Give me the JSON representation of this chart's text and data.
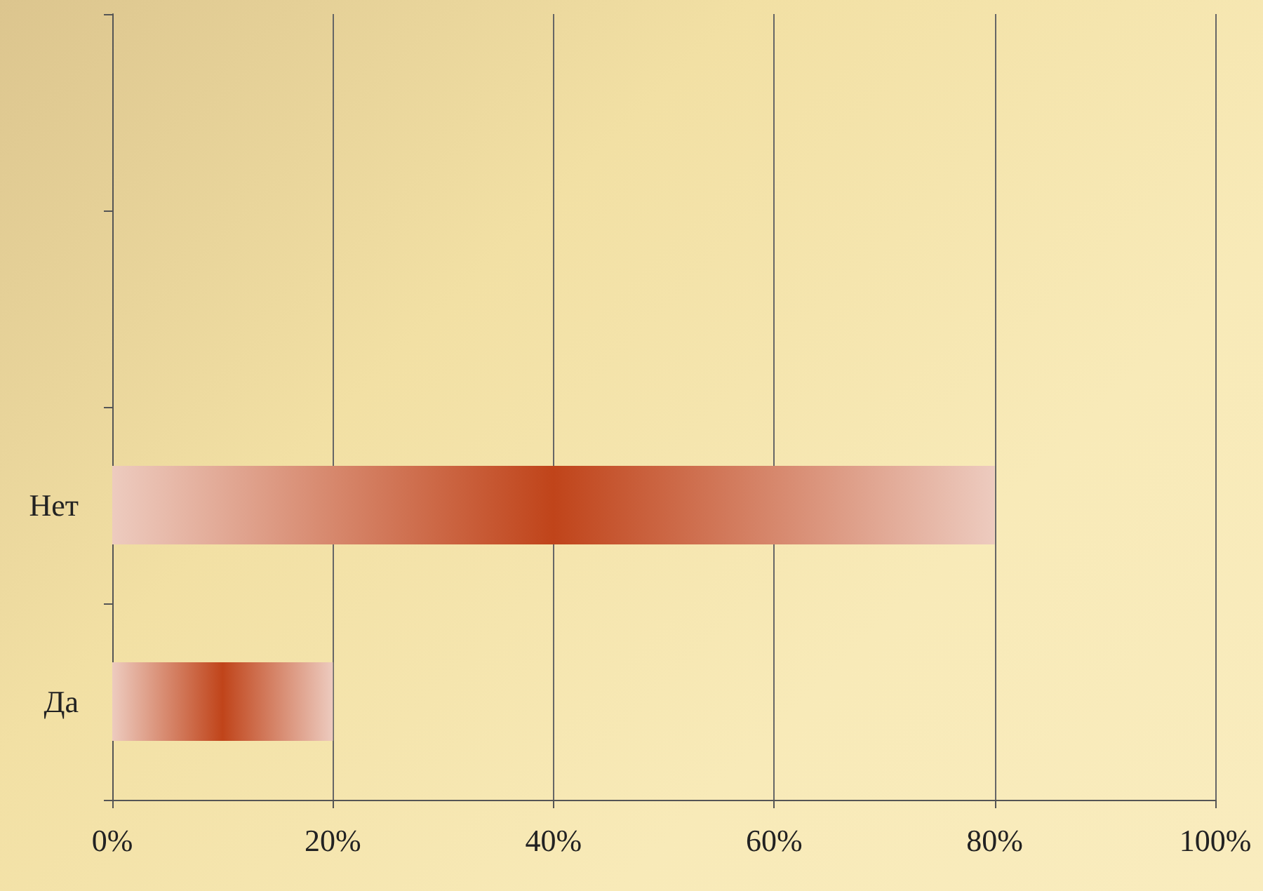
{
  "chart_data": {
    "type": "bar",
    "orientation": "horizontal",
    "categories": [
      null,
      null,
      "Нет",
      "Да"
    ],
    "values": [
      null,
      null,
      80,
      20
    ],
    "color": "#c0441a",
    "xlim": [
      0,
      100
    ],
    "xticks": [
      {
        "value": 0,
        "label": "0%"
      },
      {
        "value": 20,
        "label": "20%"
      },
      {
        "value": 40,
        "label": "40%"
      },
      {
        "value": 60,
        "label": "60%"
      },
      {
        "value": 80,
        "label": "80%"
      },
      {
        "value": 100,
        "label": "100%"
      }
    ],
    "grid": "x"
  }
}
